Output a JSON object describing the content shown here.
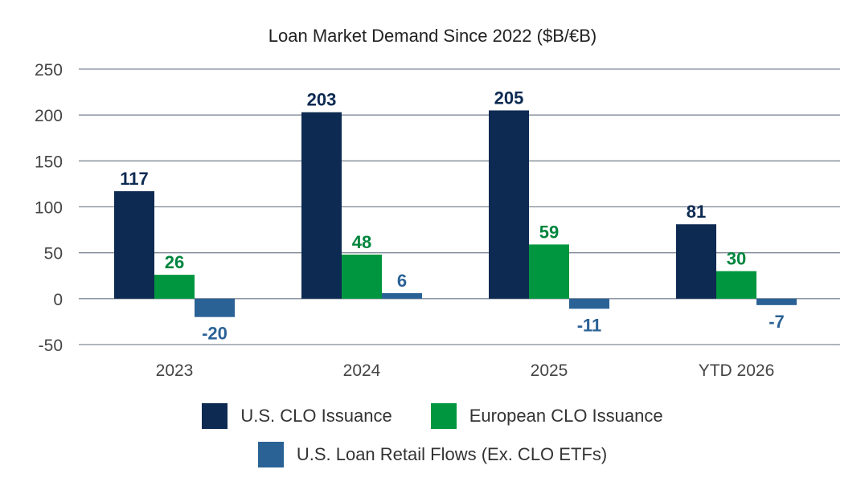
{
  "chart_data": {
    "type": "bar",
    "title": "Loan Market Demand Since 2022 ($B/€B)",
    "categories": [
      "2023",
      "2024",
      "2025",
      "YTD 2026"
    ],
    "series": [
      {
        "name": "U.S. CLO Issuance",
        "values": [
          117,
          203,
          205,
          81
        ],
        "color": "#0d2a52",
        "label_color": "#0d2a52"
      },
      {
        "name": "European CLO Issuance",
        "values": [
          26,
          48,
          59,
          30
        ],
        "color": "#00963f",
        "label_color": "#00853e"
      },
      {
        "name": "U.S. Loan Retail Flows (Ex. CLO ETFs)",
        "values": [
          -20,
          6,
          -11,
          -7
        ],
        "color": "#2a6296",
        "label_color": "#2a6296"
      }
    ],
    "ylim": [
      -50,
      250
    ],
    "yticks": [
      -50,
      0,
      50,
      100,
      150,
      200,
      250
    ],
    "grid": true,
    "legend_placement": "bottom"
  }
}
